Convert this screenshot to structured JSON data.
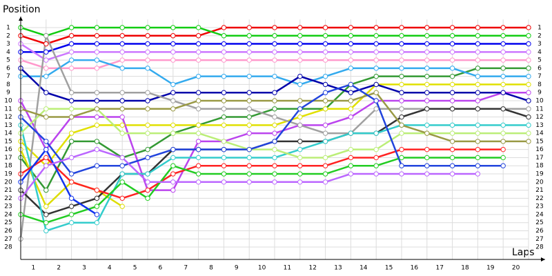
{
  "chart_data": {
    "type": "line",
    "y_label": "Position",
    "x_label": "Laps",
    "x": [
      0,
      1,
      2,
      3,
      4,
      5,
      6,
      7,
      8,
      9,
      10,
      11,
      12,
      13,
      14,
      15,
      16,
      17,
      18,
      19,
      20
    ],
    "xlim": [
      0,
      20
    ],
    "xticks": [
      {
        "value": 0.5,
        "label": "1"
      },
      {
        "value": 1.5,
        "label": "2"
      },
      {
        "value": 2.5,
        "label": "3"
      },
      {
        "value": 3.5,
        "label": "4"
      },
      {
        "value": 4.5,
        "label": "5"
      },
      {
        "value": 5.5,
        "label": "6"
      },
      {
        "value": 6.5,
        "label": "7"
      },
      {
        "value": 7.5,
        "label": "8"
      },
      {
        "value": 8.5,
        "label": "9"
      },
      {
        "value": 9.5,
        "label": "10"
      },
      {
        "value": 10.5,
        "label": "11"
      },
      {
        "value": 11.5,
        "label": "12"
      },
      {
        "value": 12.5,
        "label": "13"
      },
      {
        "value": 13.5,
        "label": "14"
      },
      {
        "value": 14.5,
        "label": "15"
      },
      {
        "value": 15.5,
        "label": "16"
      },
      {
        "value": 16.5,
        "label": "17"
      },
      {
        "value": 17.5,
        "label": "18"
      },
      {
        "value": 18.5,
        "label": "19"
      },
      {
        "value": 19.5,
        "label": "20"
      }
    ],
    "ylim": [
      29.5,
      0
    ],
    "yticks": [
      1,
      2,
      3,
      4,
      5,
      6,
      7,
      8,
      9,
      10,
      11,
      12,
      13,
      14,
      15,
      16,
      17,
      18,
      19,
      20,
      21,
      22,
      23,
      24,
      25,
      26,
      27,
      28
    ],
    "grid": true,
    "right_tick_labels": true,
    "series": [
      {
        "color": "#ee0000",
        "values": [
          2,
          3,
          2,
          2,
          2,
          2,
          2,
          2,
          1,
          1,
          1,
          1,
          1,
          1,
          1,
          1,
          1,
          1,
          1,
          1,
          1
        ]
      },
      {
        "color": "#11cc11",
        "values": [
          1,
          2,
          1,
          1,
          1,
          1,
          1,
          1,
          2,
          2,
          2,
          2,
          2,
          2,
          2,
          2,
          2,
          2,
          2,
          2,
          2
        ]
      },
      {
        "color": "#0000ee",
        "values": [
          4,
          4,
          3,
          3,
          3,
          3,
          3,
          3,
          3,
          3,
          3,
          3,
          3,
          3,
          3,
          3,
          3,
          3,
          3,
          3,
          3
        ]
      },
      {
        "color": "#cc77ff",
        "values": [
          3,
          5,
          4,
          4,
          4,
          4,
          4,
          4,
          4,
          4,
          4,
          4,
          4,
          4,
          4,
          4,
          4,
          4,
          4,
          4,
          4
        ]
      },
      {
        "color": "#ff99cc",
        "values": [
          5,
          6,
          6,
          6,
          5,
          5,
          5,
          5,
          5,
          5,
          5,
          5,
          5,
          5,
          5,
          5,
          5,
          5,
          5,
          5,
          5
        ]
      },
      {
        "color": "#339933",
        "values": [
          17,
          21,
          15,
          15,
          17,
          16,
          14,
          13,
          12,
          12,
          11,
          11,
          11,
          8,
          7,
          7,
          7,
          7,
          6,
          6,
          6
        ]
      },
      {
        "color": "#33aaee",
        "values": [
          7,
          7,
          5,
          5,
          6,
          6,
          8,
          7,
          7,
          7,
          7,
          8,
          7,
          6,
          6,
          6,
          6,
          6,
          7,
          7,
          7
        ]
      },
      {
        "color": "#dddd00",
        "values": [
          16,
          23,
          20,
          21,
          23,
          null,
          null,
          null,
          null,
          null,
          null,
          null,
          null,
          null,
          null,
          null,
          null,
          null,
          null,
          null,
          null
        ]
      },
      {
        "color": "#e0e000",
        "values": [
          15,
          18,
          14,
          13,
          13,
          13,
          13,
          13,
          13,
          13,
          13,
          12,
          11,
          11,
          8,
          8,
          8,
          8,
          8,
          8,
          8
        ]
      },
      {
        "color": "#bb44ee",
        "values": [
          10,
          16,
          12,
          12,
          12,
          21,
          21,
          15,
          15,
          14,
          14,
          13,
          13,
          12,
          10,
          10,
          10,
          10,
          10,
          9,
          9
        ]
      },
      {
        "color": "#0000aa",
        "values": [
          6,
          9,
          10,
          10,
          10,
          10,
          9,
          9,
          9,
          9,
          9,
          7,
          8,
          9,
          8,
          9,
          9,
          9,
          9,
          9,
          10
        ]
      },
      {
        "color": "#a0a0a0",
        "values": [
          27,
          2,
          9,
          9,
          9,
          9,
          10,
          11,
          11,
          11,
          12,
          13,
          14,
          14,
          11,
          11,
          11,
          11,
          11,
          11,
          11
        ]
      },
      {
        "color": "#333333",
        "values": [
          21,
          24,
          23,
          22,
          19,
          19,
          16,
          16,
          16,
          16,
          15,
          15,
          15,
          14,
          14,
          12,
          11,
          11,
          11,
          11,
          12
        ]
      },
      {
        "color": "#33cccc",
        "values": [
          13,
          26,
          25,
          25,
          19,
          19,
          17,
          17,
          17,
          17,
          17,
          16,
          15,
          14,
          14,
          13,
          13,
          13,
          13,
          13,
          13
        ]
      },
      {
        "color": "#bbee77",
        "values": [
          14,
          11,
          11,
          11,
          14,
          14,
          14,
          14,
          15,
          16,
          16,
          17,
          17,
          16,
          16,
          14,
          14,
          14,
          14,
          14,
          14
        ]
      },
      {
        "color": "#999944",
        "values": [
          11,
          12,
          12,
          11,
          11,
          11,
          11,
          10,
          10,
          10,
          10,
          10,
          10,
          10,
          9,
          13,
          14,
          15,
          15,
          15,
          15
        ]
      },
      {
        "color": "#ff2222",
        "values": [
          19,
          17,
          20,
          21,
          22,
          21,
          19,
          18,
          18,
          18,
          18,
          18,
          18,
          17,
          17,
          16,
          16,
          16,
          16,
          16,
          null
        ]
      },
      {
        "color": "#22cc22",
        "values": [
          24,
          25,
          24,
          23,
          20,
          22,
          18,
          19,
          19,
          19,
          19,
          19,
          19,
          18,
          18,
          17,
          17,
          17,
          17,
          17,
          null
        ]
      },
      {
        "color": "#1133ee",
        "values": [
          20,
          16,
          22,
          24,
          null,
          null,
          null,
          null,
          null,
          null,
          null,
          null,
          null,
          null,
          null,
          null,
          null,
          null,
          null,
          null,
          null
        ]
      },
      {
        "color": "#2244dd",
        "values": [
          12,
          15,
          19,
          18,
          18,
          17,
          16,
          16,
          16,
          16,
          15,
          11,
          9,
          8,
          10,
          18,
          18,
          18,
          18,
          18,
          null
        ]
      },
      {
        "color": "#bb66ff",
        "values": [
          22,
          18,
          17,
          16,
          17,
          20,
          20,
          20,
          20,
          20,
          20,
          20,
          20,
          19,
          19,
          19,
          19,
          19,
          19,
          null,
          null
        ]
      }
    ]
  }
}
